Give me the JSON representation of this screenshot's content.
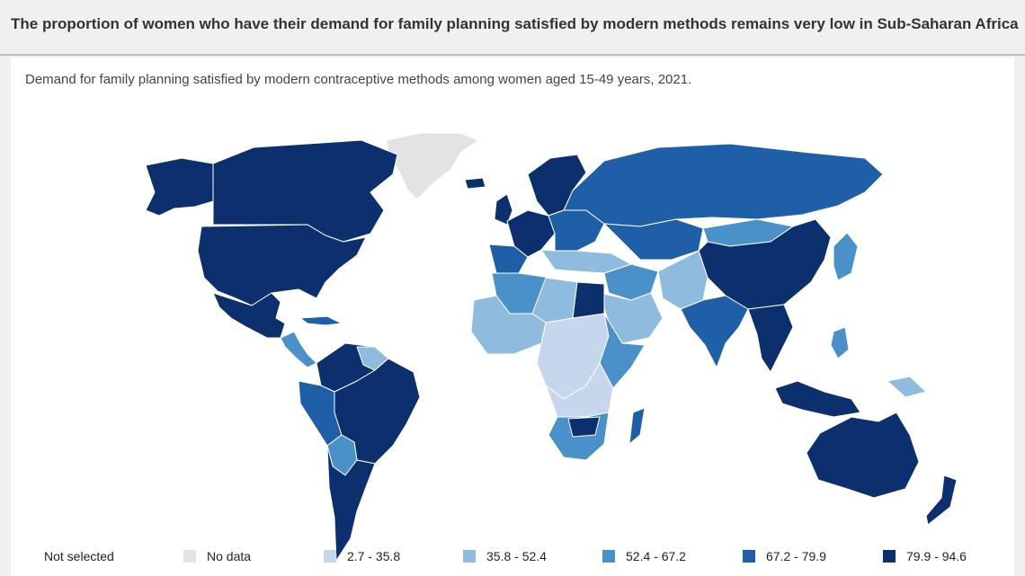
{
  "header": {
    "title": "The proportion of women who have their demand for family planning satisfied by modern methods remains very low in Sub-Saharan Africa"
  },
  "subtitle": "Demand for family planning satisfied by modern contraceptive methods among women aged 15-49 years, 2021.",
  "colors": {
    "no_data": "#e3e3e3",
    "bin1": "#c6d6ec",
    "bin2": "#8fbbde",
    "bin3": "#4a90c9",
    "bin4": "#1f5fa8",
    "bin5": "#0c2f6e",
    "border": "#ffffff"
  },
  "legend": {
    "not_selected": "Not selected",
    "no_data": "No data",
    "bins": [
      "2.7 - 35.8",
      "35.8 - 52.4",
      "52.4 - 67.2",
      "67.2 - 79.9",
      "79.9 - 94.6"
    ]
  }
}
